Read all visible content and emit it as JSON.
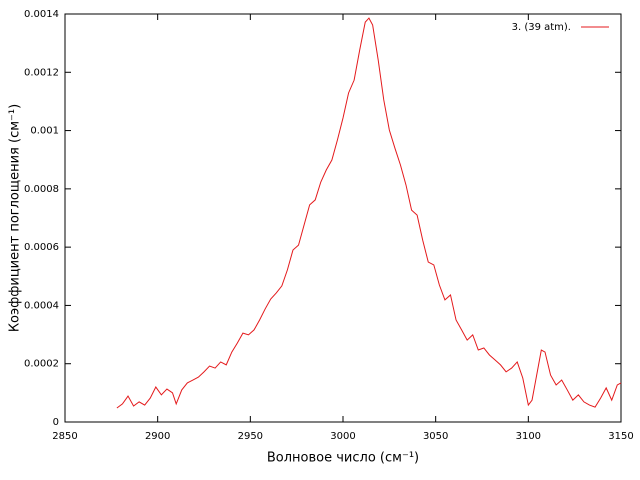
{
  "chart_data": {
    "type": "line",
    "xlabel": "Волновое число (см⁻¹)",
    "ylabel": "Коэффициент поглощения (см⁻¹)",
    "x": [
      2878,
      2881,
      2884,
      2887,
      2890,
      2893,
      2896,
      2899,
      2902,
      2905,
      2908,
      2910,
      2913,
      2916,
      2919,
      2922,
      2925,
      2928,
      2931,
      2934,
      2937,
      2940,
      2943,
      2946,
      2949,
      2952,
      2955,
      2958,
      2961,
      2964,
      2967,
      2970,
      2973,
      2976,
      2979,
      2982,
      2985,
      2988,
      2991,
      2994,
      2997,
      3000,
      3003,
      3006,
      3009,
      3012,
      3014,
      3016,
      3019,
      3022,
      3025,
      3028,
      3031,
      3034,
      3037,
      3040,
      3043,
      3046,
      3049,
      3052,
      3055,
      3058,
      3061,
      3064,
      3067,
      3070,
      3073,
      3076,
      3079,
      3082,
      3085,
      3088,
      3091,
      3094,
      3097,
      3100,
      3102,
      3105,
      3107,
      3109,
      3112,
      3115,
      3118,
      3121,
      3124,
      3127,
      3130,
      3133,
      3136,
      3139,
      3142,
      3145,
      3148,
      3150
    ],
    "series": [
      {
        "name": "3. (39 atm).",
        "color": "#e41a1c",
        "values": [
          4.8e-05,
          6.2e-05,
          8.9e-05,
          5.5e-05,
          6.9e-05,
          5.8e-05,
          8.2e-05,
          0.00012,
          9.3e-05,
          0.000113,
          0.0001,
          6.2e-05,
          0.00011,
          0.000134,
          0.000144,
          0.000154,
          0.000172,
          0.000192,
          0.000185,
          0.000206,
          0.000196,
          0.00024,
          0.000271,
          0.000305,
          0.000299,
          0.000316,
          0.00035,
          0.000388,
          0.000422,
          0.000443,
          0.000467,
          0.000522,
          0.00059,
          0.000607,
          0.000676,
          0.000745,
          0.000762,
          0.000823,
          0.000865,
          0.000899,
          0.000968,
          0.001043,
          0.001129,
          0.001173,
          0.001276,
          0.001372,
          0.001386,
          0.001362,
          0.001242,
          0.001105,
          0.001002,
          0.00094,
          0.000882,
          0.000813,
          0.000727,
          0.00071,
          0.000624,
          0.000549,
          0.000539,
          0.00047,
          0.000419,
          0.000436,
          0.00035,
          0.000316,
          0.000281,
          0.000299,
          0.000247,
          0.000254,
          0.00023,
          0.000213,
          0.000196,
          0.000172,
          0.000185,
          0.000206,
          0.000151,
          5.8e-05,
          7.5e-05,
          0.000178,
          0.000247,
          0.00024,
          0.000161,
          0.000127,
          0.000144,
          0.00011,
          7.5e-05,
          9.3e-05,
          6.9e-05,
          5.8e-05,
          5.1e-05,
          8.2e-05,
          0.000117,
          7.5e-05,
          0.000127,
          0.000134
        ]
      }
    ],
    "xlim": [
      2850,
      3150
    ],
    "xticks": [
      2850,
      2900,
      2950,
      3000,
      3050,
      3100,
      3150
    ],
    "ylim": [
      0,
      0.0014
    ],
    "yticks": [
      0,
      0.0002,
      0.0004,
      0.0006,
      0.0008,
      0.001,
      0.0012,
      0.0014
    ],
    "grid": false,
    "legend": "top-right"
  }
}
